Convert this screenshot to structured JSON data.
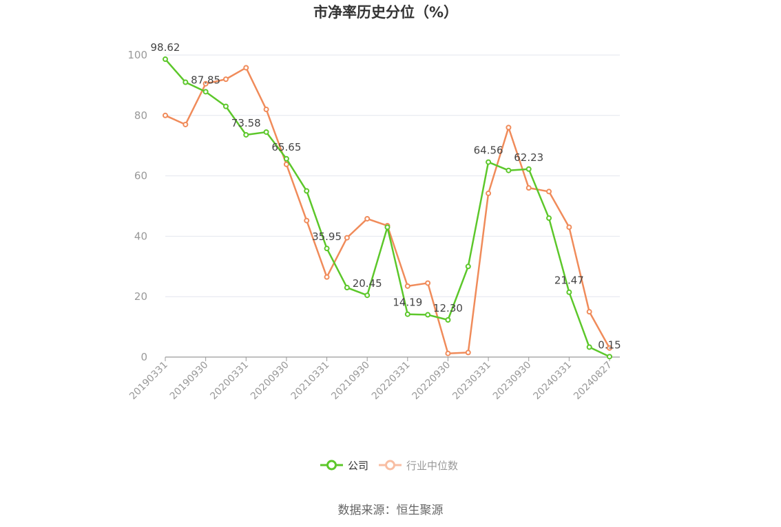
{
  "chart_data": {
    "type": "line",
    "title": "市净率历史分位（%）",
    "source": "数据来源：恒生聚源",
    "ylim": [
      0,
      100
    ],
    "yticks": [
      0,
      20,
      40,
      60,
      80,
      100
    ],
    "grid": true,
    "legend_position": "bottom",
    "x": [
      "20190331",
      "20190630",
      "20190930",
      "20191231",
      "20200331",
      "20200630",
      "20200930",
      "20201231",
      "20210331",
      "20210630",
      "20210930",
      "20211231",
      "20220331",
      "20220630",
      "20220930",
      "20221231",
      "20230331",
      "20230630",
      "20230930",
      "20231231",
      "20240331",
      "20240630",
      "20240827"
    ],
    "xtick_labels": [
      "20190331",
      "20190930",
      "20200331",
      "20200930",
      "20210331",
      "20210930",
      "20220331",
      "20220930",
      "20230331",
      "20230930",
      "20240331",
      "20240827"
    ],
    "series": [
      {
        "name": "公司",
        "color": "#5cc72a",
        "values": [
          98.62,
          91.0,
          87.85,
          83.0,
          73.58,
          74.5,
          65.65,
          55.0,
          35.95,
          23.0,
          20.45,
          43.0,
          14.19,
          14.0,
          12.3,
          30.0,
          64.56,
          61.8,
          62.23,
          46.0,
          21.47,
          3.3,
          0.15
        ],
        "labels": {
          "0": "98.62",
          "2": "87.85",
          "4": "73.58",
          "6": "65.65",
          "8": "35.95",
          "10": "20.45",
          "12": "14.19",
          "14": "12.30",
          "16": "64.56",
          "18": "62.23",
          "20": "21.47",
          "22": "0.15"
        }
      },
      {
        "name": "行业中位数",
        "color": "#f08b5a",
        "values": [
          80.0,
          77.0,
          90.5,
          92.0,
          95.8,
          82.0,
          63.8,
          45.2,
          26.5,
          39.5,
          45.8,
          43.5,
          23.5,
          24.5,
          1.2,
          1.5,
          54.2,
          76.0,
          56.0,
          54.8,
          43.0,
          15.0,
          3.0
        ]
      }
    ]
  },
  "legend": [
    {
      "name": "公司",
      "color": "#5cc72a",
      "text_color": "#333333"
    },
    {
      "name": "行业中位数",
      "color": "#f8bea3",
      "text_color": "#999999"
    }
  ]
}
